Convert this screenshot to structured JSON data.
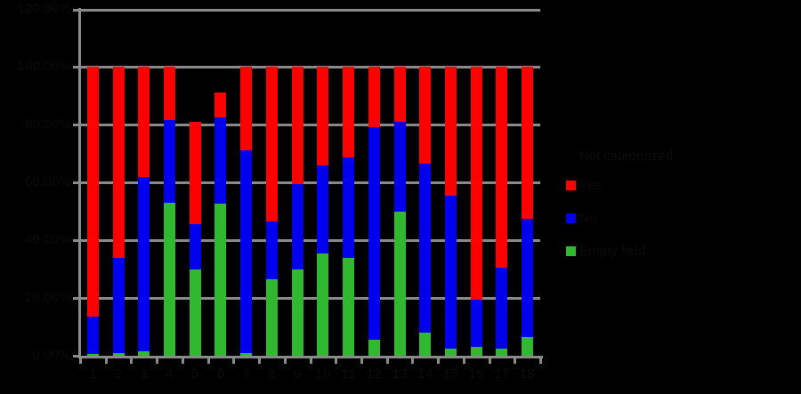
{
  "chart_data": {
    "type": "bar",
    "stacked": true,
    "title": "",
    "categories": [
      "1",
      "2",
      "3",
      "4",
      "5",
      "6",
      "7",
      "8",
      "9",
      "10",
      "11",
      "12",
      "13",
      "14",
      "15",
      "16",
      "17",
      "18"
    ],
    "series": [
      {
        "name": "Yes",
        "color": "#ff0000",
        "values": [
          86.5,
          66,
          38,
          18.5,
          35.5,
          8.5,
          29,
          53.5,
          40.5,
          34,
          31.5,
          21,
          19,
          33.5,
          44.5,
          80.5,
          69.5,
          52.5
        ]
      },
      {
        "name": "No",
        "color": "#0000ee",
        "values": [
          13,
          33,
          60.5,
          28.5,
          15.5,
          30,
          70,
          20,
          29.5,
          30.5,
          34.5,
          73.5,
          31,
          58.5,
          53,
          16.5,
          28,
          41
        ]
      },
      {
        "name": "Empty field",
        "color": "#30b830",
        "values": [
          0.5,
          1,
          1.5,
          53,
          30,
          52.5,
          1,
          26.5,
          30,
          35.5,
          34,
          5.5,
          50,
          8,
          2.5,
          3,
          2.5,
          6.5
        ]
      }
    ],
    "legend_title": "Not categorized",
    "legend_position": "right",
    "y_ticks": [
      "120.00%",
      "100.00%",
      "80.00%",
      "60.00%",
      "40.00%",
      "20.00%",
      "0.00%"
    ],
    "ylim": [
      0,
      120
    ],
    "xlabel": "",
    "ylabel": "",
    "grid": true
  },
  "colors": {
    "background": "#000000",
    "axis": "#8a8a8a",
    "text": "#0b0b0b",
    "series_yes": "#ff0000",
    "series_no": "#0000ee",
    "series_empty_field": "#30b830"
  }
}
